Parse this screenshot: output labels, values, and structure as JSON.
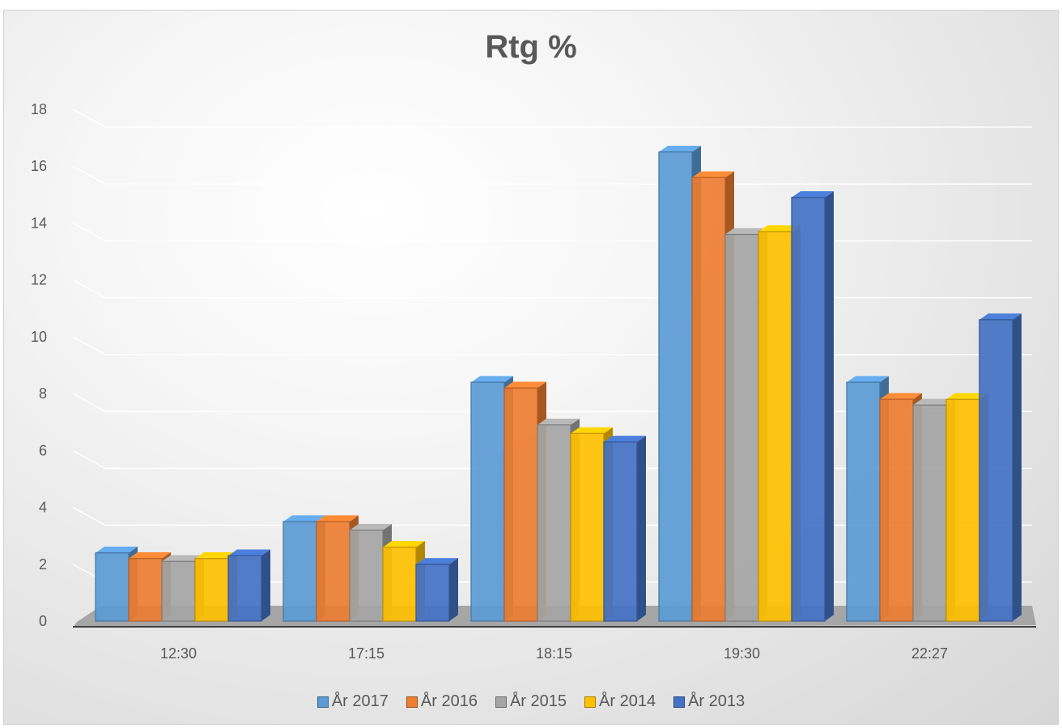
{
  "chart_data": {
    "type": "bar",
    "title": "Rtg %",
    "categories": [
      "12:30",
      "17:15",
      "18:15",
      "19:30",
      "22:27"
    ],
    "series": [
      {
        "name": "År 2017",
        "color": "#5b9bd5",
        "values": [
          2.4,
          3.5,
          8.4,
          16.5,
          8.4
        ]
      },
      {
        "name": "År 2016",
        "color": "#ed7d31",
        "values": [
          2.2,
          3.5,
          8.2,
          15.6,
          7.8
        ]
      },
      {
        "name": "År 2015",
        "color": "#a5a5a5",
        "values": [
          2.1,
          3.2,
          6.9,
          13.6,
          7.6
        ]
      },
      {
        "name": "År 2014",
        "color": "#ffc000",
        "values": [
          2.2,
          2.6,
          6.6,
          13.7,
          7.8
        ]
      },
      {
        "name": "År 2013",
        "color": "#4472c4",
        "values": [
          2.3,
          2.0,
          6.3,
          14.9,
          10.6
        ]
      }
    ],
    "ylim": [
      0,
      18
    ],
    "yticks": [
      0,
      2,
      4,
      6,
      8,
      10,
      12,
      14,
      16,
      18
    ],
    "grid": true,
    "legend": "bottom"
  }
}
